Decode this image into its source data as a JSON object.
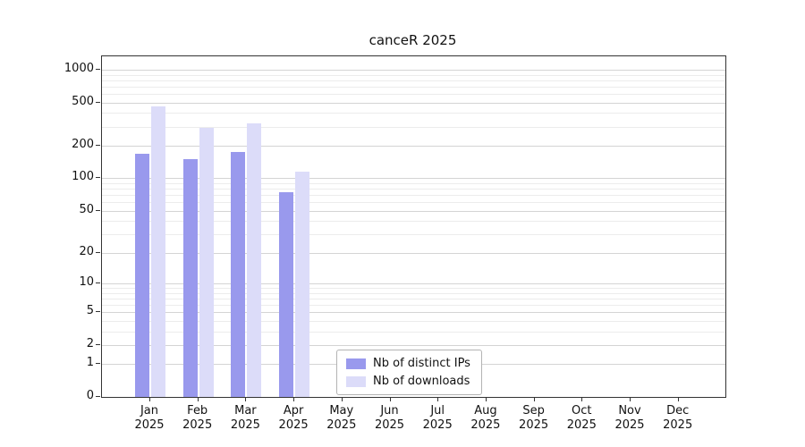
{
  "title": "canceR 2025",
  "chart_data": {
    "type": "bar",
    "title": "canceR 2025",
    "x_months": [
      "Jan",
      "Feb",
      "Mar",
      "Apr",
      "May",
      "Jun",
      "Jul",
      "Aug",
      "Sep",
      "Oct",
      "Nov",
      "Dec"
    ],
    "x_year": "2025",
    "y_ticks": [
      0,
      1,
      2,
      5,
      10,
      20,
      50,
      100,
      200,
      500,
      1000
    ],
    "y_scale": "log10(1+value)",
    "ylim": [
      0,
      1300
    ],
    "grid": "horizontal major and minor log gridlines",
    "legend_position": "lower center",
    "series": [
      {
        "name": "Nb of distinct IPs",
        "color": "#9999ed",
        "values": [
          170,
          150,
          175,
          74,
          0,
          0,
          0,
          0,
          0,
          0,
          0,
          0
        ]
      },
      {
        "name": "Nb of downloads",
        "color": "#dcdcf9",
        "values": [
          460,
          290,
          320,
          115,
          0,
          0,
          0,
          0,
          0,
          0,
          0,
          0
        ]
      }
    ]
  }
}
